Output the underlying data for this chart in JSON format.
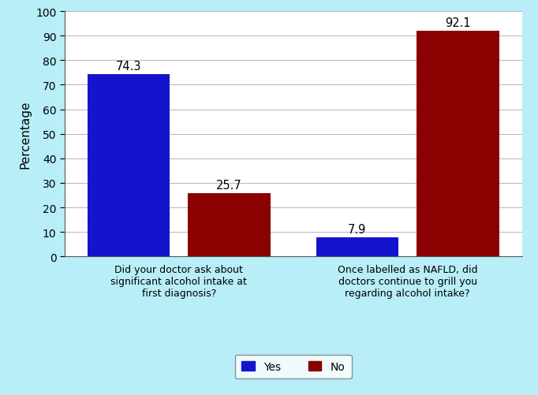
{
  "groups": [
    {
      "label": "Did your doctor ask about\nsignificant alcohol intake at\nfirst diagnosis?",
      "yes": 74.3,
      "no": 25.7
    },
    {
      "label": "Once labelled as NAFLD, did\ndoctors continue to grill you\nregarding alcohol intake?",
      "yes": 7.9,
      "no": 92.1
    }
  ],
  "yes_color": "#1414CC",
  "no_color": "#8B0000",
  "ylabel": "Percentage",
  "ylim": [
    0,
    100
  ],
  "yticks": [
    0,
    10,
    20,
    30,
    40,
    50,
    60,
    70,
    80,
    90,
    100
  ],
  "legend_labels": [
    "Yes",
    "No"
  ],
  "background_color": "#b8eef8",
  "plot_bg_color": "#ffffff",
  "bar_width": 0.18,
  "label_fontsize": 9.0,
  "value_fontsize": 10.5,
  "ylabel_fontsize": 11,
  "legend_fontsize": 10,
  "group_centers": [
    0.25,
    0.75
  ],
  "xlim": [
    0.0,
    1.0
  ]
}
